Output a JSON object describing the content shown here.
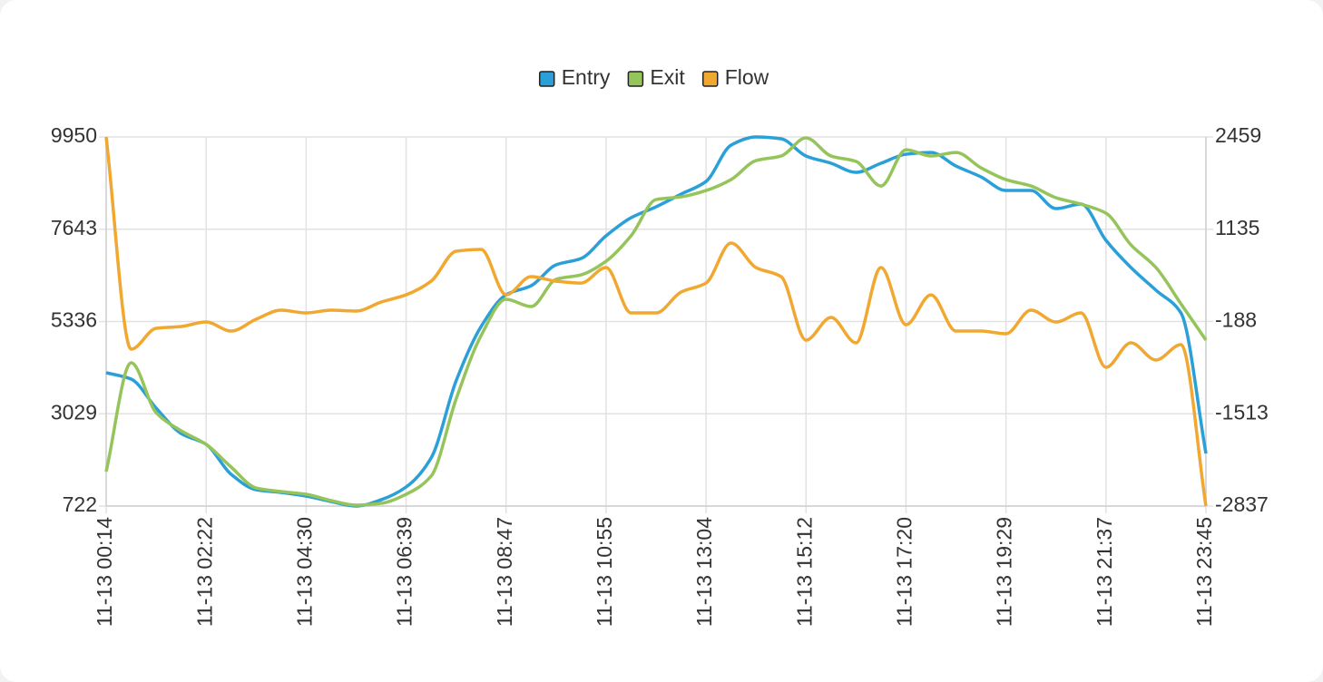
{
  "chart_data": {
    "type": "line",
    "categories": [
      "11-13 00:14",
      null,
      null,
      null,
      "11-13 02:22",
      null,
      null,
      null,
      "11-13 04:30",
      null,
      null,
      null,
      "11-13 06:39",
      null,
      null,
      null,
      "11-13 08:47",
      null,
      null,
      null,
      "11-13 10:55",
      null,
      null,
      null,
      "11-13 13:04",
      null,
      null,
      null,
      "11-13 15:12",
      null,
      null,
      null,
      "11-13 17:20",
      null,
      null,
      null,
      "11-13 19:29",
      null,
      null,
      null,
      "11-13 21:37",
      null,
      null,
      null,
      "11-13 23:45"
    ],
    "series": [
      {
        "name": "Entry",
        "color": "#2a9fd8",
        "values": [
          4055,
          3896,
          3170,
          2536,
          2264,
          1515,
          1130,
          1062,
          971,
          835,
          722,
          880,
          1198,
          1924,
          3850,
          5211,
          6004,
          6231,
          6752,
          6911,
          7478,
          7931,
          8203,
          8520,
          8838,
          9745,
          9950,
          9904,
          9473,
          9292,
          9065,
          9292,
          9518,
          9563,
          9223,
          8951,
          8611,
          8611,
          8158,
          8271,
          7365,
          6685,
          6118,
          5551,
          2037
        ]
      },
      {
        "name": "Exit",
        "color": "#95c45a",
        "values": [
          1583,
          4304,
          3057,
          2604,
          2264,
          1697,
          1175,
          1085,
          1017,
          858,
          745,
          790,
          1017,
          1470,
          3397,
          4984,
          5891,
          5709,
          6390,
          6503,
          6843,
          7478,
          8384,
          8452,
          8611,
          8883,
          9359,
          9473,
          9926,
          9473,
          9337,
          8724,
          9631,
          9473,
          9563,
          9178,
          8883,
          8724,
          8430,
          8271,
          8045,
          7251,
          6685,
          5778,
          4870
        ]
      },
      {
        "name": "Flow",
        "color": "#f0a830",
        "axis": "y2",
        "values": [
          2459,
          -586,
          -287,
          -261,
          -196,
          -326,
          -157,
          -27,
          -66,
          -27,
          -40,
          90,
          194,
          389,
          819,
          845,
          194,
          455,
          389,
          363,
          585,
          -66,
          -66,
          233,
          363,
          936,
          585,
          455,
          -456,
          -131,
          -495,
          585,
          -235,
          194,
          -326,
          -326,
          -365,
          -27,
          -196,
          -66,
          -846,
          -495,
          -742,
          -521,
          -2837
        ]
      }
    ],
    "ylim": [
      722,
      9950
    ],
    "yticks": [
      722,
      3029,
      5336,
      7643,
      9950
    ],
    "y2lim": [
      -2837,
      2459
    ],
    "y2ticks": [
      -2837,
      -1513,
      -188,
      1135,
      2459
    ],
    "grid": true,
    "legend": "top"
  }
}
